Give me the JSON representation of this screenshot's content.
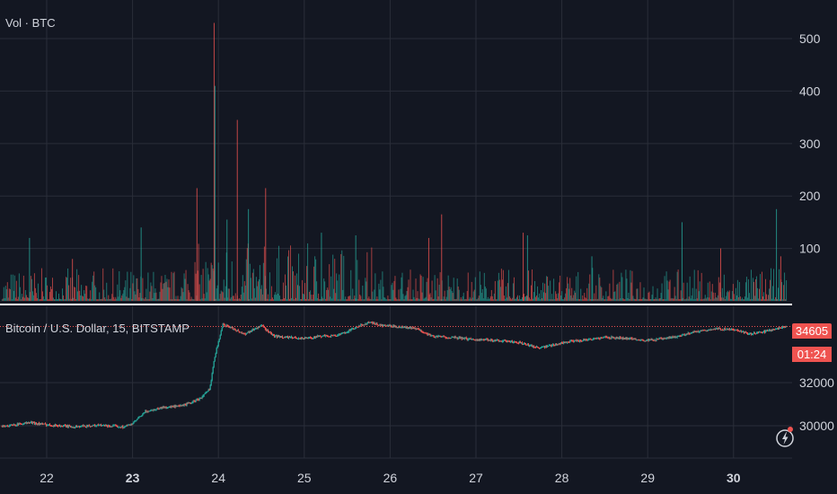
{
  "volume_pane": {
    "title": "Vol · BTC"
  },
  "price_pane": {
    "title": "Bitcoin / U.S. Dollar, 15, BITSTAMP"
  },
  "last_price": {
    "value": "34605",
    "countdown": "01:24"
  },
  "colors": {
    "background": "#131722",
    "grid": "#2a2e39",
    "up": "#26a69a",
    "down": "#ef5350",
    "text": "#d1d4dc",
    "price_tag": "#ef5350"
  },
  "toolbar": {
    "icon": "lightning-icon"
  },
  "chart_data": [
    {
      "type": "bar",
      "title": "Vol · BTC",
      "ylim": [
        0,
        560
      ],
      "y_ticks": [
        "100",
        "200",
        "300",
        "400",
        "500"
      ],
      "y_tick_values": [
        100,
        200,
        300,
        400,
        500
      ],
      "x_tick_labels": [
        "22",
        "23",
        "24",
        "25",
        "26",
        "27",
        "28",
        "29",
        "30"
      ],
      "grid": true,
      "spikes": [
        {
          "x": 23.95,
          "value": 530,
          "dir": "down"
        },
        {
          "x": 23.96,
          "value": 410,
          "dir": "up"
        },
        {
          "x": 24.22,
          "value": 345,
          "dir": "down"
        },
        {
          "x": 23.75,
          "value": 215,
          "dir": "down"
        },
        {
          "x": 24.55,
          "value": 215,
          "dir": "down"
        },
        {
          "x": 24.35,
          "value": 175,
          "dir": "up"
        },
        {
          "x": 24.1,
          "value": 155,
          "dir": "up"
        },
        {
          "x": 25.2,
          "value": 130,
          "dir": "up"
        },
        {
          "x": 25.6,
          "value": 125,
          "dir": "up"
        },
        {
          "x": 26.6,
          "value": 165,
          "dir": "down"
        },
        {
          "x": 26.45,
          "value": 120,
          "dir": "down"
        },
        {
          "x": 27.55,
          "value": 130,
          "dir": "down"
        },
        {
          "x": 27.6,
          "value": 125,
          "dir": "up"
        },
        {
          "x": 28.35,
          "value": 85,
          "dir": "up"
        },
        {
          "x": 29.4,
          "value": 150,
          "dir": "up"
        },
        {
          "x": 29.85,
          "value": 100,
          "dir": "down"
        },
        {
          "x": 30.5,
          "value": 175,
          "dir": "up"
        },
        {
          "x": 30.55,
          "value": 85,
          "dir": "down"
        },
        {
          "x": 22.3,
          "value": 80,
          "dir": "down"
        },
        {
          "x": 21.8,
          "value": 120,
          "dir": "up"
        },
        {
          "x": 23.1,
          "value": 140,
          "dir": "up"
        }
      ]
    },
    {
      "type": "line",
      "title": "Bitcoin / U.S. Dollar, 15, BITSTAMP",
      "ylim": [
        28500,
        35500
      ],
      "y_ticks": [
        "30000",
        "32000"
      ],
      "y_tick_values": [
        30000,
        32000
      ],
      "x_tick_labels": [
        "22",
        "23",
        "24",
        "25",
        "26",
        "27",
        "28",
        "29",
        "30"
      ],
      "last_price": 34605,
      "grid": true,
      "series": [
        {
          "x": [
            21.55,
            21.8,
            22.0,
            22.3,
            22.6,
            22.9,
            23.0,
            23.15,
            23.35,
            23.55,
            23.7,
            23.8,
            23.9,
            23.95,
            24.05,
            24.15,
            24.3,
            24.5,
            24.65,
            24.8,
            25.0,
            25.2,
            25.4,
            25.6,
            25.75,
            25.9,
            26.1,
            26.3,
            26.5,
            26.7,
            27.0,
            27.3,
            27.5,
            27.7,
            27.75,
            28.0,
            28.3,
            28.5,
            28.8,
            29.0,
            29.3,
            29.6,
            29.8,
            30.0,
            30.2,
            30.4,
            30.6
          ],
          "values": [
            30000,
            30150,
            30050,
            29950,
            30020,
            29950,
            30100,
            30650,
            30850,
            30900,
            31100,
            31300,
            31700,
            33100,
            34700,
            34550,
            34250,
            34650,
            34150,
            34100,
            34050,
            34150,
            34200,
            34550,
            34800,
            34650,
            34600,
            34500,
            34150,
            34100,
            34000,
            33950,
            33850,
            33650,
            33600,
            33850,
            34000,
            34100,
            34050,
            33950,
            34100,
            34400,
            34500,
            34450,
            34250,
            34400,
            34605
          ]
        }
      ]
    }
  ]
}
